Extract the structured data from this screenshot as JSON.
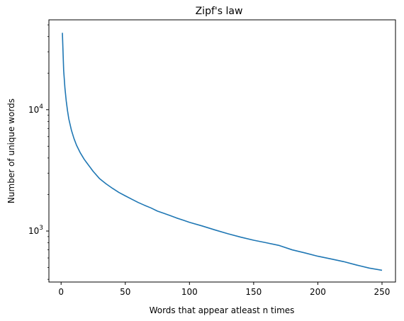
{
  "chart_data": {
    "type": "line",
    "title": "Zipf's law",
    "xlabel": "Words that appear atleast n times",
    "ylabel": "Number of unique words",
    "xlim": [
      -9.5,
      260.5
    ],
    "ylim": [
      380,
      55000
    ],
    "yscale": "log",
    "grid": false,
    "x_ticks": [
      {
        "value": 0,
        "label": "0"
      },
      {
        "value": 50,
        "label": "50"
      },
      {
        "value": 100,
        "label": "100"
      },
      {
        "value": 150,
        "label": "150"
      },
      {
        "value": 200,
        "label": "200"
      },
      {
        "value": 250,
        "label": "250"
      }
    ],
    "y_ticks": [
      {
        "value": 1000,
        "base": "10",
        "exp": "3"
      },
      {
        "value": 10000,
        "base": "10",
        "exp": "4"
      }
    ],
    "series": [
      {
        "color": "#1f77b4",
        "x": [
          1,
          2,
          3,
          4,
          5,
          6,
          8,
          10,
          12,
          15,
          18,
          20,
          25,
          30,
          35,
          40,
          45,
          50,
          55,
          60,
          65,
          70,
          75,
          80,
          85,
          90,
          95,
          100,
          110,
          120,
          130,
          140,
          150,
          160,
          170,
          180,
          190,
          200,
          210,
          220,
          230,
          240,
          250
        ],
        "y": [
          43000,
          21000,
          15000,
          11800,
          9800,
          8400,
          6800,
          5800,
          5100,
          4400,
          3900,
          3650,
          3100,
          2700,
          2450,
          2250,
          2080,
          1950,
          1830,
          1720,
          1630,
          1550,
          1460,
          1400,
          1340,
          1280,
          1230,
          1180,
          1100,
          1020,
          950,
          890,
          840,
          800,
          760,
          700,
          660,
          620,
          590,
          560,
          525,
          495,
          475
        ]
      }
    ]
  }
}
